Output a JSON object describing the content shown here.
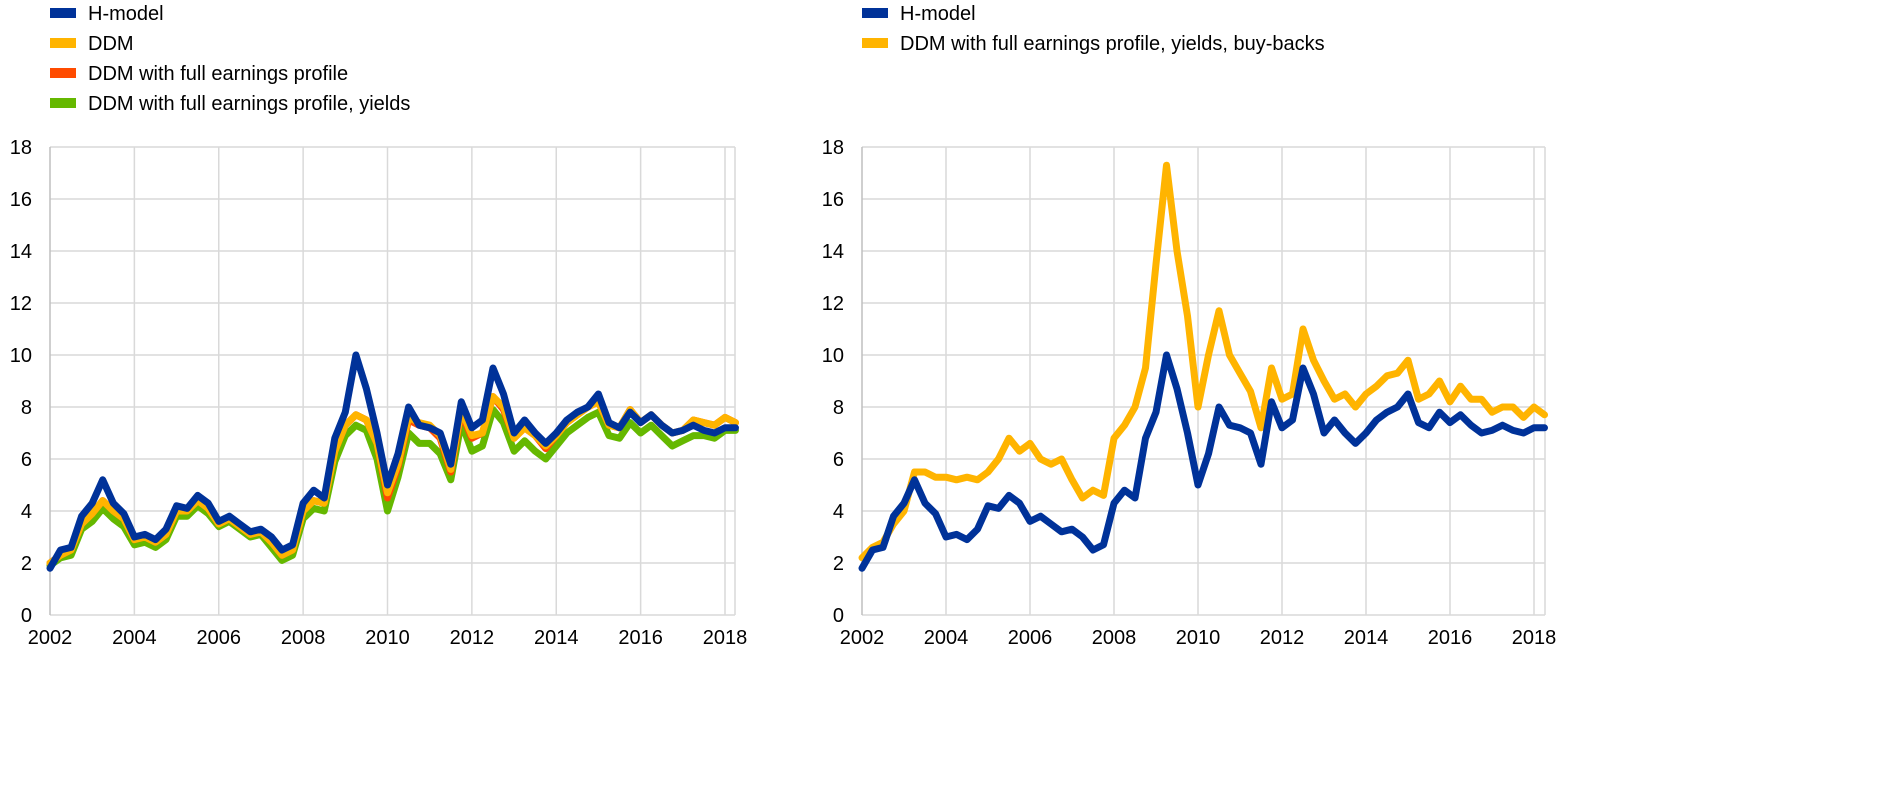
{
  "chart_data": [
    {
      "type": "line",
      "title": "",
      "xlabel": "",
      "ylabel": "",
      "xlim": [
        2002,
        2018.3
      ],
      "ylim": [
        0,
        18
      ],
      "x_ticks": [
        "2002",
        "2004",
        "2006",
        "2008",
        "2010",
        "2012",
        "2014",
        "2016",
        "2018"
      ],
      "y_ticks": [
        "0",
        "2",
        "4",
        "6",
        "8",
        "10",
        "12",
        "14",
        "16",
        "18"
      ],
      "grid": true,
      "legend_position": "top-left",
      "x_start": 2002,
      "x_step": 0.25,
      "series": [
        {
          "name": "DDM with full earnings profile, yields",
          "color": "#65b800",
          "values": [
            1.9,
            2.2,
            2.3,
            3.3,
            3.6,
            4.1,
            3.7,
            3.4,
            2.7,
            2.8,
            2.6,
            2.9,
            3.8,
            3.8,
            4.2,
            3.9,
            3.4,
            3.6,
            3.3,
            3.0,
            3.1,
            2.6,
            2.1,
            2.3,
            3.7,
            4.1,
            4.0,
            5.9,
            6.9,
            7.3,
            7.1,
            6.0,
            4.0,
            5.3,
            7.0,
            6.6,
            6.6,
            6.2,
            5.2,
            7.4,
            6.3,
            6.5,
            7.9,
            7.4,
            6.3,
            6.7,
            6.3,
            6.0,
            6.5,
            7.0,
            7.3,
            7.6,
            7.8,
            6.9,
            6.8,
            7.4,
            7.0,
            7.3,
            6.9,
            6.5,
            6.7,
            6.9,
            6.9,
            6.8,
            7.1,
            7.1
          ]
        },
        {
          "name": "DDM with full earnings profile",
          "color": "#ff4b00",
          "values": [
            2.0,
            2.3,
            2.5,
            3.5,
            3.9,
            4.4,
            4.0,
            3.7,
            2.9,
            3.0,
            2.8,
            3.1,
            4.0,
            4.0,
            4.4,
            4.1,
            3.5,
            3.7,
            3.4,
            3.1,
            3.2,
            2.8,
            2.3,
            2.5,
            4.0,
            4.4,
            4.3,
            6.3,
            7.3,
            7.7,
            7.5,
            6.6,
            4.5,
            5.7,
            7.5,
            7.3,
            7.2,
            6.8,
            5.5,
            7.8,
            6.8,
            7.0,
            8.4,
            7.9,
            6.8,
            7.2,
            6.9,
            6.4,
            6.9,
            7.4,
            7.7,
            8.0,
            8.2,
            7.3,
            7.2,
            7.9,
            7.4,
            7.7,
            7.3,
            7.0,
            7.1,
            7.5,
            7.4,
            7.3,
            7.6,
            7.4
          ]
        },
        {
          "name": "DDM",
          "color": "#ffb400",
          "values": [
            2.0,
            2.3,
            2.5,
            3.5,
            3.9,
            4.4,
            4.0,
            3.7,
            2.9,
            3.0,
            2.8,
            3.1,
            4.0,
            4.0,
            4.4,
            4.1,
            3.5,
            3.7,
            3.4,
            3.1,
            3.2,
            2.8,
            2.3,
            2.5,
            4.0,
            4.4,
            4.3,
            6.3,
            7.3,
            7.7,
            7.5,
            6.6,
            4.7,
            5.8,
            7.6,
            7.4,
            7.3,
            6.9,
            5.6,
            7.9,
            6.9,
            7.0,
            8.4,
            8.0,
            6.8,
            7.2,
            6.9,
            6.5,
            6.9,
            7.4,
            7.7,
            8.0,
            8.2,
            7.3,
            7.2,
            7.9,
            7.4,
            7.7,
            7.3,
            7.0,
            7.1,
            7.5,
            7.4,
            7.3,
            7.6,
            7.4
          ]
        },
        {
          "name": "H-model",
          "color": "#003299",
          "values": [
            1.8,
            2.5,
            2.6,
            3.8,
            4.3,
            5.2,
            4.3,
            3.9,
            3.0,
            3.1,
            2.9,
            3.3,
            4.2,
            4.1,
            4.6,
            4.3,
            3.6,
            3.8,
            3.5,
            3.2,
            3.3,
            3.0,
            2.5,
            2.7,
            4.3,
            4.8,
            4.5,
            6.8,
            7.8,
            10.0,
            8.7,
            7.0,
            5.0,
            6.2,
            8.0,
            7.3,
            7.2,
            7.0,
            5.8,
            8.2,
            7.2,
            7.5,
            9.5,
            8.5,
            7.0,
            7.5,
            7.0,
            6.6,
            7.0,
            7.5,
            7.8,
            8.0,
            8.5,
            7.4,
            7.2,
            7.8,
            7.4,
            7.7,
            7.3,
            7.0,
            7.1,
            7.3,
            7.1,
            7.0,
            7.2,
            7.2
          ]
        }
      ],
      "legend": [
        "H-model",
        "DDM",
        "DDM with full earnings profile",
        "DDM with full earnings profile, yields"
      ]
    },
    {
      "type": "line",
      "title": "",
      "xlabel": "",
      "ylabel": "",
      "xlim": [
        2002,
        2018.3
      ],
      "ylim": [
        0,
        18
      ],
      "x_ticks": [
        "2002",
        "2004",
        "2006",
        "2008",
        "2010",
        "2012",
        "2014",
        "2016",
        "2018"
      ],
      "y_ticks": [
        "0",
        "2",
        "4",
        "6",
        "8",
        "10",
        "12",
        "14",
        "16",
        "18"
      ],
      "grid": true,
      "legend_position": "top-left",
      "x_start": 2002,
      "x_step": 0.25,
      "series": [
        {
          "name": "DDM with full earnings profile, yields, buy-backs",
          "color": "#ffb400",
          "values": [
            2.2,
            2.6,
            2.8,
            3.5,
            4.0,
            5.5,
            5.5,
            5.3,
            5.3,
            5.2,
            5.3,
            5.2,
            5.5,
            6.0,
            6.8,
            6.3,
            6.6,
            6.0,
            5.8,
            6.0,
            5.2,
            4.5,
            4.8,
            4.6,
            6.8,
            7.3,
            8.0,
            9.5,
            13.5,
            17.3,
            14.0,
            11.5,
            8.0,
            10.0,
            11.7,
            10.0,
            9.3,
            8.6,
            7.2,
            9.5,
            8.3,
            8.5,
            11.0,
            9.8,
            9.0,
            8.3,
            8.5,
            8.0,
            8.5,
            8.8,
            9.2,
            9.3,
            9.8,
            8.3,
            8.5,
            9.0,
            8.2,
            8.8,
            8.3,
            8.3,
            7.8,
            8.0,
            8.0,
            7.6,
            8.0,
            7.7
          ]
        },
        {
          "name": "H-model",
          "color": "#003299",
          "values": [
            1.8,
            2.5,
            2.6,
            3.8,
            4.3,
            5.2,
            4.3,
            3.9,
            3.0,
            3.1,
            2.9,
            3.3,
            4.2,
            4.1,
            4.6,
            4.3,
            3.6,
            3.8,
            3.5,
            3.2,
            3.3,
            3.0,
            2.5,
            2.7,
            4.3,
            4.8,
            4.5,
            6.8,
            7.8,
            10.0,
            8.7,
            7.0,
            5.0,
            6.2,
            8.0,
            7.3,
            7.2,
            7.0,
            5.8,
            8.2,
            7.2,
            7.5,
            9.5,
            8.5,
            7.0,
            7.5,
            7.0,
            6.6,
            7.0,
            7.5,
            7.8,
            8.0,
            8.5,
            7.4,
            7.2,
            7.8,
            7.4,
            7.7,
            7.3,
            7.0,
            7.1,
            7.3,
            7.1,
            7.0,
            7.2,
            7.2
          ]
        }
      ],
      "legend": [
        "H-model",
        "DDM with full earnings profile, yields, buy-backs"
      ]
    }
  ],
  "legend_colors": [
    [
      "#003299",
      "#ffb400",
      "#ff4b00",
      "#65b800"
    ],
    [
      "#003299",
      "#ffb400"
    ]
  ]
}
